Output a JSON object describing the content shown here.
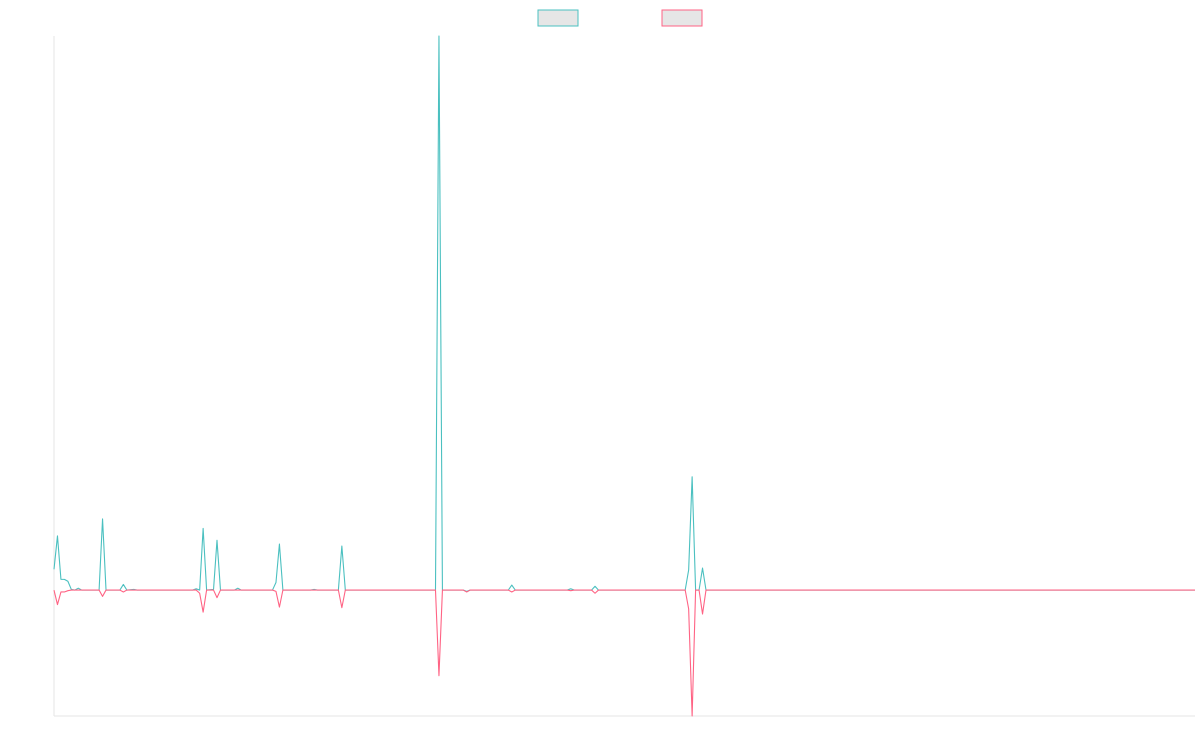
{
  "chart_data": {
    "type": "line",
    "title": "",
    "xlabel": "",
    "ylabel": "",
    "legend_position": "top-center",
    "grid": false,
    "x_count": 330,
    "ylim": [
      -200,
      880
    ],
    "series": [
      {
        "name": "",
        "color": "#4bc0c0",
        "fill": "#e6e6e6",
        "points": [
          [
            0,
            33
          ],
          [
            1,
            86
          ],
          [
            2,
            17
          ],
          [
            3,
            17
          ],
          [
            4,
            14
          ],
          [
            5,
            1
          ],
          [
            6,
            0
          ],
          [
            7,
            3
          ],
          [
            8,
            0
          ],
          [
            13,
            0
          ],
          [
            14,
            113
          ],
          [
            15,
            0
          ],
          [
            19,
            0
          ],
          [
            20,
            9
          ],
          [
            21,
            0
          ],
          [
            23,
            1
          ],
          [
            24,
            0
          ],
          [
            40,
            0
          ],
          [
            41,
            2
          ],
          [
            42,
            0
          ],
          [
            43,
            98
          ],
          [
            44,
            0
          ],
          [
            46,
            1
          ],
          [
            47,
            79
          ],
          [
            48,
            0
          ],
          [
            52,
            0
          ],
          [
            53,
            3
          ],
          [
            54,
            0
          ],
          [
            63,
            0
          ],
          [
            64,
            12
          ],
          [
            65,
            73
          ],
          [
            66,
            0
          ],
          [
            74,
            0
          ],
          [
            75,
            1
          ],
          [
            76,
            0
          ],
          [
            82,
            0
          ],
          [
            83,
            70
          ],
          [
            84,
            0
          ],
          [
            110,
            0
          ],
          [
            111,
            880
          ],
          [
            112,
            0
          ],
          [
            118,
            0
          ],
          [
            119,
            -2
          ],
          [
            120,
            0
          ],
          [
            131,
            0
          ],
          [
            132,
            8
          ],
          [
            133,
            0
          ],
          [
            148,
            0
          ],
          [
            149,
            2
          ],
          [
            150,
            0
          ],
          [
            155,
            0
          ],
          [
            156,
            6
          ],
          [
            157,
            0
          ],
          [
            182,
            0
          ],
          [
            183,
            32
          ],
          [
            184,
            180
          ],
          [
            185,
            0
          ],
          [
            186,
            0
          ],
          [
            187,
            35
          ],
          [
            188,
            0
          ],
          [
            329,
            0
          ]
        ]
      },
      {
        "name": "",
        "color": "#ff6384",
        "fill": "#e6e6e6",
        "points": [
          [
            0,
            0
          ],
          [
            1,
            -23
          ],
          [
            2,
            -3
          ],
          [
            3,
            -3
          ],
          [
            4,
            -1
          ],
          [
            5,
            0
          ],
          [
            13,
            0
          ],
          [
            14,
            -10
          ],
          [
            15,
            0
          ],
          [
            19,
            0
          ],
          [
            20,
            -3
          ],
          [
            21,
            0
          ],
          [
            41,
            0
          ],
          [
            42,
            -5
          ],
          [
            43,
            -35
          ],
          [
            44,
            0
          ],
          [
            46,
            0
          ],
          [
            47,
            -12
          ],
          [
            48,
            0
          ],
          [
            63,
            0
          ],
          [
            64,
            -2
          ],
          [
            65,
            -27
          ],
          [
            66,
            0
          ],
          [
            82,
            0
          ],
          [
            83,
            -28
          ],
          [
            84,
            0
          ],
          [
            110,
            0
          ],
          [
            111,
            -136
          ],
          [
            112,
            0
          ],
          [
            118,
            0
          ],
          [
            119,
            -3
          ],
          [
            120,
            0
          ],
          [
            131,
            0
          ],
          [
            132,
            -3
          ],
          [
            133,
            0
          ],
          [
            148,
            0
          ],
          [
            149,
            -1
          ],
          [
            150,
            0
          ],
          [
            155,
            0
          ],
          [
            156,
            -5
          ],
          [
            157,
            0
          ],
          [
            182,
            0
          ],
          [
            183,
            -30
          ],
          [
            184,
            -200
          ],
          [
            185,
            0
          ],
          [
            186,
            0
          ],
          [
            187,
            -38
          ],
          [
            188,
            0
          ],
          [
            329,
            0
          ]
        ]
      }
    ]
  }
}
